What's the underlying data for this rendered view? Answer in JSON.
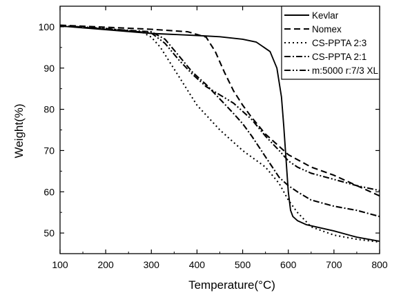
{
  "chart_data": {
    "type": "line",
    "xlabel": "Temperature(°C)",
    "ylabel": "Weight(%)",
    "xlim": [
      100,
      800
    ],
    "ylim": [
      45,
      105
    ],
    "xticks": [
      100,
      200,
      300,
      400,
      500,
      600,
      700,
      800
    ],
    "yticks": [
      50,
      60,
      70,
      80,
      90,
      100
    ],
    "grid": false,
    "legend_position": "top-right",
    "series": [
      {
        "name": "Kevlar",
        "style": "solid",
        "x": [
          100,
          200,
          300,
          400,
          450,
          500,
          530,
          560,
          575,
          585,
          590,
          595,
          600,
          605,
          610,
          620,
          640,
          700,
          750,
          800
        ],
        "y": [
          100.2,
          99.3,
          98.4,
          97.9,
          97.6,
          97.0,
          96.3,
          94.0,
          90.0,
          83.0,
          76.0,
          68.0,
          60.0,
          55.5,
          54.0,
          53.0,
          52.0,
          50.5,
          49.0,
          48.0
        ]
      },
      {
        "name": "Nomex",
        "style": "dashed",
        "x": [
          100,
          200,
          300,
          380,
          420,
          440,
          460,
          480,
          500,
          520,
          550,
          580,
          600,
          650,
          700,
          750,
          800
        ],
        "y": [
          100.4,
          99.9,
          99.4,
          98.8,
          97.5,
          94.0,
          89.0,
          84.5,
          81.0,
          78.0,
          74.0,
          71.0,
          69.0,
          66.0,
          64.0,
          61.5,
          59.0
        ]
      },
      {
        "name": "CS-PPTA 2:3",
        "style": "dotted",
        "x": [
          100,
          200,
          280,
          300,
          320,
          340,
          360,
          380,
          400,
          450,
          500,
          550,
          580,
          600,
          620,
          650,
          700,
          750,
          800
        ],
        "y": [
          100.3,
          99.4,
          98.7,
          97.5,
          95.0,
          91.5,
          88.0,
          84.5,
          81.0,
          75.0,
          70.0,
          66.0,
          62.0,
          58.0,
          55.0,
          51.5,
          49.5,
          48.5,
          47.8
        ]
      },
      {
        "name": "CS-PPTA 2:1",
        "style": "dashdot",
        "x": [
          100,
          200,
          300,
          330,
          360,
          390,
          420,
          450,
          480,
          500,
          520,
          550,
          580,
          600,
          620,
          650,
          700,
          750,
          800
        ],
        "y": [
          100.2,
          99.5,
          98.8,
          97.0,
          93.0,
          89.0,
          86.0,
          82.5,
          79.0,
          76.5,
          73.5,
          68.5,
          63.5,
          61.5,
          60.0,
          58.0,
          56.5,
          55.5,
          54.0
        ]
      },
      {
        "name": "m:5000 r:7/3 XL",
        "style": "dashdotdot",
        "x": [
          100,
          200,
          300,
          330,
          360,
          390,
          420,
          450,
          480,
          520,
          550,
          580,
          600,
          620,
          650,
          700,
          750,
          800
        ],
        "y": [
          100.3,
          99.6,
          98.5,
          96.0,
          92.0,
          88.5,
          85.5,
          83.5,
          81.5,
          77.5,
          73.5,
          70.0,
          67.5,
          66.0,
          64.5,
          63.0,
          61.5,
          60.3
        ]
      }
    ]
  }
}
